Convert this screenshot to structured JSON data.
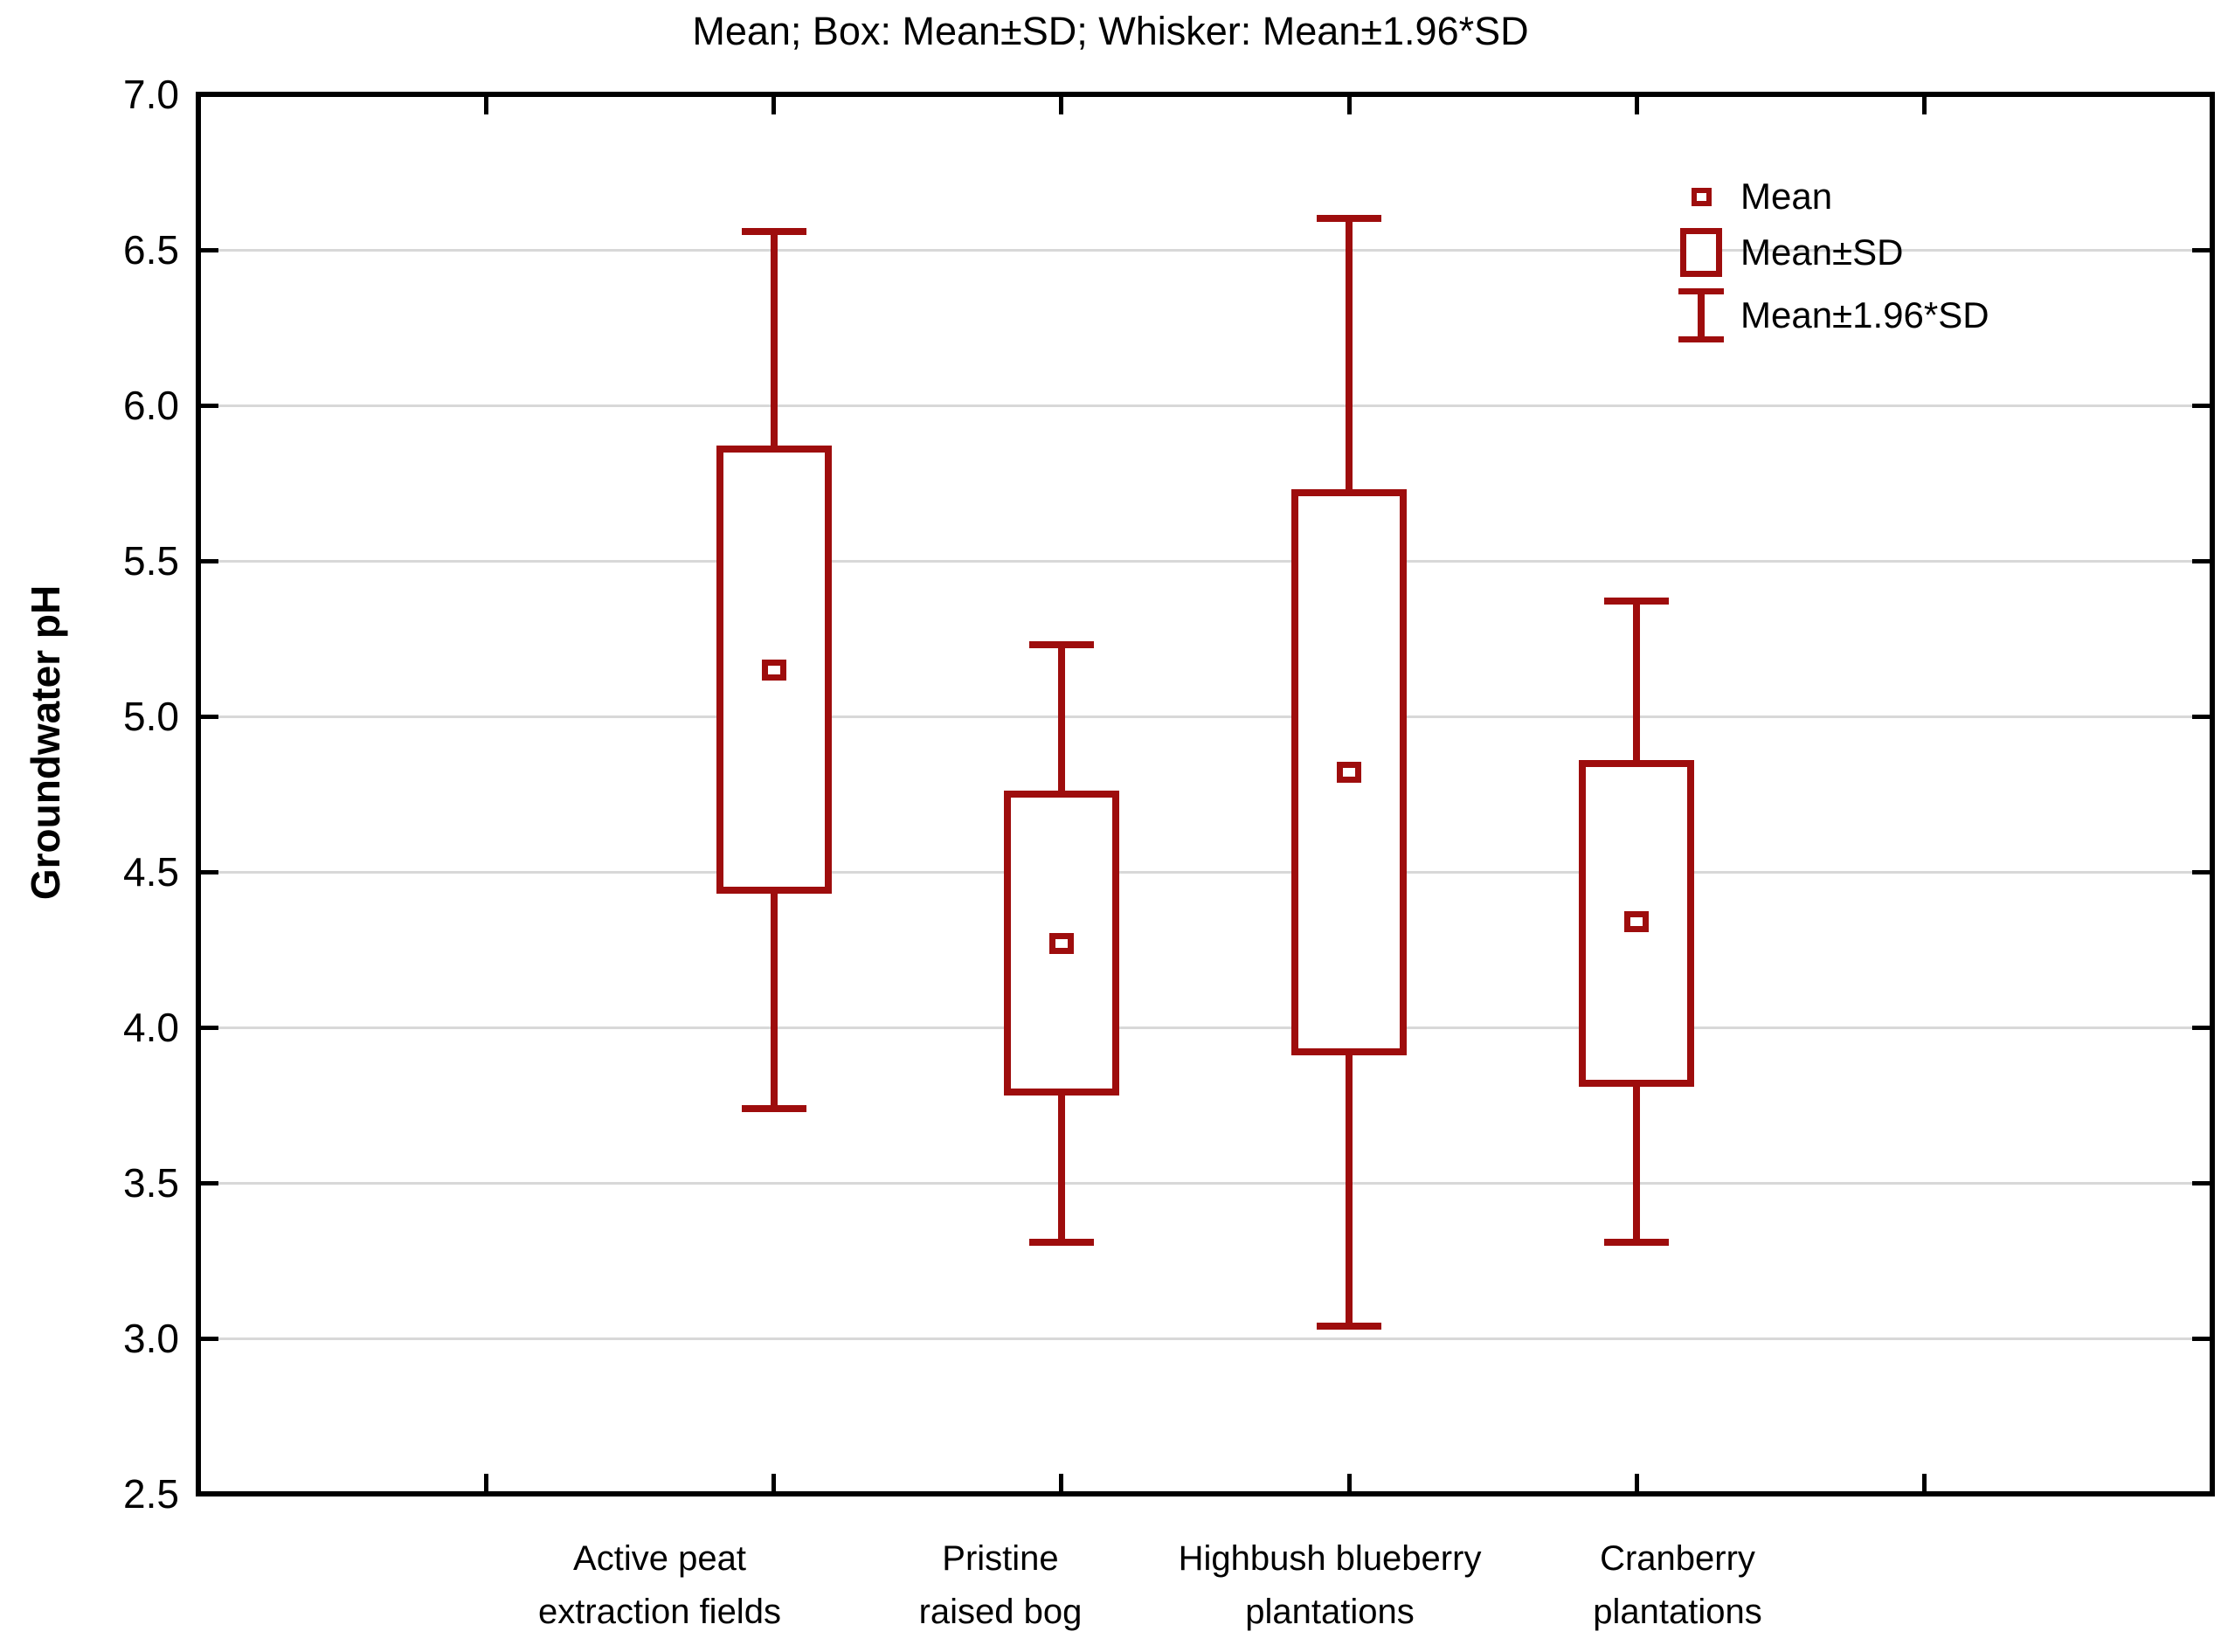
{
  "title": "Mean; Box: Mean±SD; Whisker: Mean±1.96*SD",
  "y_axis": {
    "label": "Groundwater pH",
    "tick_labels": [
      "7.0",
      "6.5",
      "6.0",
      "5.5",
      "5.0",
      "4.5",
      "4.0",
      "3.5",
      "3.0",
      "2.5"
    ],
    "min": 2.5,
    "max": 7.0,
    "step": 0.5
  },
  "legend": {
    "items": [
      {
        "glyph": "mean-marker-icon",
        "label": "Mean"
      },
      {
        "glyph": "box-icon",
        "label": "Mean±SD"
      },
      {
        "glyph": "whisker-icon",
        "label": "Mean±1.96*SD"
      }
    ]
  },
  "colors": {
    "series": "#9e0d0d",
    "grid": "#d8d8d8",
    "axis": "#000000",
    "background": "#ffffff",
    "text": "#000000"
  },
  "chart_data": {
    "type": "box",
    "title": "Mean; Box: Mean±SD; Whisker: Mean±1.96*SD",
    "ylabel": "Groundwater pH",
    "ylim": [
      2.5,
      7.0
    ],
    "ytick_step": 0.5,
    "grid": "horizontal gridlines at each 0.5, light gray",
    "legend_position": "inside top-right",
    "box_rule": "Mean±SD",
    "whisker_rule": "Mean±1.96*SD",
    "categories": [
      "Active peat extraction fields",
      "Pristine raised bog",
      "Highbush blueberry plantations",
      "Cranberry plantations"
    ],
    "category_label_lines": [
      [
        "Active peat",
        "extraction fields"
      ],
      [
        "Pristine",
        "raised bog"
      ],
      [
        "Highbush blueberry",
        "plantations"
      ],
      [
        "Cranberry",
        "plantations"
      ]
    ],
    "series": [
      {
        "category": "Active peat extraction fields",
        "mean": 5.15,
        "sd": 0.72,
        "box_low": 4.43,
        "box_high": 5.87,
        "whisker_low": 3.74,
        "whisker_high": 6.56
      },
      {
        "category": "Pristine raised bog",
        "mean": 4.27,
        "sd": 0.49,
        "box_low": 3.78,
        "box_high": 4.76,
        "whisker_low": 3.31,
        "whisker_high": 5.23
      },
      {
        "category": "Highbush blueberry plantations",
        "mean": 4.82,
        "sd": 0.91,
        "box_low": 3.91,
        "box_high": 5.73,
        "whisker_low": 3.04,
        "whisker_high": 6.6
      },
      {
        "category": "Cranberry plantations",
        "mean": 4.34,
        "sd": 0.53,
        "box_low": 3.81,
        "box_high": 4.86,
        "whisker_low": 3.31,
        "whisker_high": 5.37
      }
    ]
  }
}
